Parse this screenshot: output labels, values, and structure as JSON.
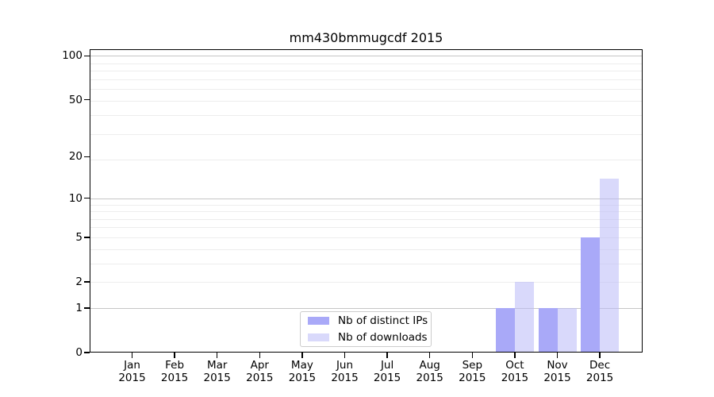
{
  "chart_data": {
    "type": "bar",
    "title": "mm430bmmugcdf 2015",
    "categories": [
      "Jan 2015",
      "Feb 2015",
      "Mar 2015",
      "Apr 2015",
      "May 2015",
      "Jun 2015",
      "Jul 2015",
      "Aug 2015",
      "Sep 2015",
      "Oct 2015",
      "Nov 2015",
      "Dec 2015"
    ],
    "month_labels": [
      "Jan",
      "Feb",
      "Mar",
      "Apr",
      "May",
      "Jun",
      "Jul",
      "Aug",
      "Sep",
      "Oct",
      "Nov",
      "Dec"
    ],
    "year_label": "2015",
    "series": [
      {
        "name": "Nb of distinct IPs",
        "color": "#a9a9f8",
        "values": [
          0,
          0,
          0,
          0,
          0,
          0,
          0,
          0,
          0,
          1,
          1,
          5
        ]
      },
      {
        "name": "Nb of downloads",
        "color": "rgba(186,186,248,0.55)",
        "values": [
          0,
          0,
          0,
          0,
          0,
          0,
          0,
          0,
          0,
          2,
          1,
          14
        ]
      }
    ],
    "y_axis": {
      "scale": "log1p",
      "ticks": [
        0,
        1,
        2,
        5,
        10,
        20,
        50,
        100
      ],
      "major_gridlines": [
        1,
        10,
        100
      ],
      "minor_gridlines": [
        2,
        3,
        4,
        5,
        6,
        7,
        8,
        9,
        19,
        29,
        39,
        49,
        59,
        69,
        79,
        89
      ],
      "ylim": [
        0,
        110
      ]
    },
    "legend": {
      "position": "lower center"
    },
    "grid": true
  }
}
